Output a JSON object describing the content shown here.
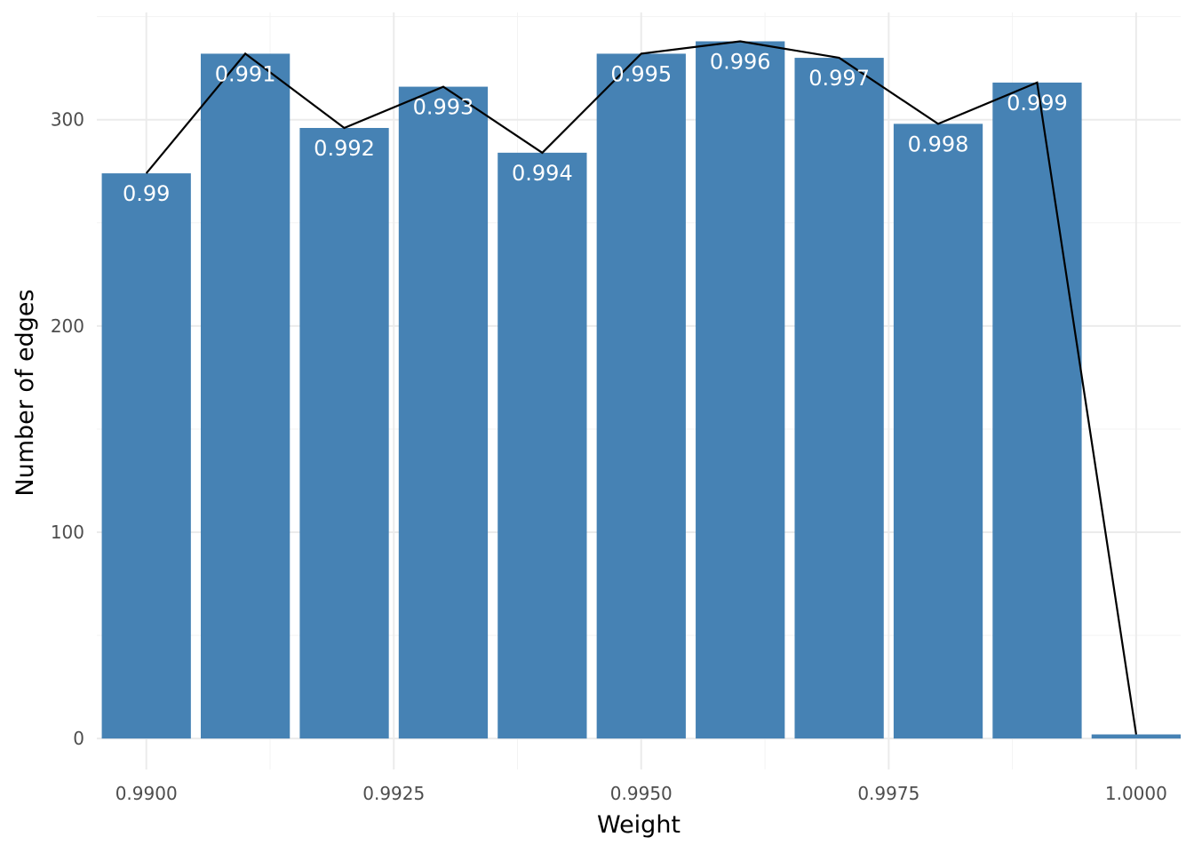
{
  "chart_data": {
    "type": "bar",
    "xlabel": "Weight",
    "ylabel": "Number of edges",
    "xlim": [
      0.9895,
      1.00045
    ],
    "ylim": [
      -15,
      352
    ],
    "x_ticks": [
      "0.9900",
      "0.9925",
      "0.9950",
      "0.9975",
      "1.0000"
    ],
    "x_tick_values": [
      0.99,
      0.9925,
      0.995,
      0.9975,
      1.0
    ],
    "y_ticks": [
      "0",
      "100",
      "200",
      "300"
    ],
    "y_tick_values": [
      0,
      100,
      200,
      300
    ],
    "bar_width": 0.0009,
    "grid": true,
    "legend": "none",
    "x": [
      0.99,
      0.991,
      0.992,
      0.993,
      0.994,
      0.995,
      0.996,
      0.997,
      0.998,
      0.999,
      1.0
    ],
    "values": [
      274,
      332,
      296,
      316,
      284,
      332,
      338,
      330,
      298,
      318,
      2
    ],
    "bar_labels": [
      "0.99",
      "0.991",
      "0.992",
      "0.993",
      "0.994",
      "0.995",
      "0.996",
      "0.997",
      "0.998",
      "0.999",
      ""
    ],
    "line_values": [
      274,
      332,
      296,
      316,
      284,
      332,
      338,
      330,
      298,
      318,
      2
    ],
    "colors": {
      "bar": "#4682b4",
      "line": "#000000",
      "bar_label": "#ffffff"
    }
  }
}
